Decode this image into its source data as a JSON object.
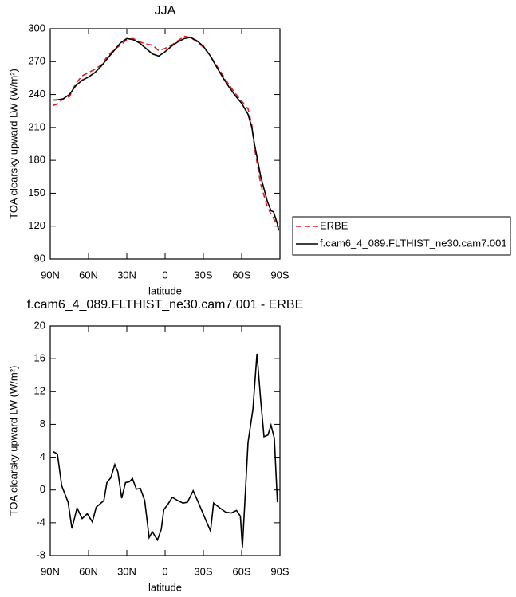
{
  "chart_data": [
    {
      "type": "line",
      "title": "JJA",
      "xlabel": "latitude",
      "ylabel": "TOA clearsky upward LW (W/m²)",
      "x": [
        88,
        85,
        80,
        75,
        70,
        65,
        60,
        55,
        50,
        45,
        40,
        35,
        30,
        25,
        20,
        15,
        10,
        5,
        0,
        -5,
        -10,
        -15,
        -20,
        -25,
        -30,
        -35,
        -40,
        -45,
        -50,
        -55,
        -60,
        -65,
        -68,
        -70,
        -75,
        -80,
        -83,
        -85,
        -88,
        -89
      ],
      "series": [
        {
          "name": "ERBE",
          "color": "#e41a1c",
          "dash": true,
          "values": [
            230,
            231,
            236,
            238,
            250,
            257,
            260,
            263,
            267,
            275,
            281,
            285,
            290,
            291,
            288,
            286,
            285,
            280,
            282,
            285,
            289,
            293,
            292,
            288,
            283,
            276,
            267,
            258,
            249,
            241,
            234,
            227,
            212,
            192,
            158,
            138,
            131,
            127,
            121,
            116
          ]
        },
        {
          "name": "f.cam6_4_089.FLTHIST_ne30.cam7.001",
          "color": "#000000",
          "dash": false,
          "values": [
            235,
            235,
            236,
            240,
            248,
            253,
            256,
            260,
            266,
            273,
            280,
            287,
            291,
            290,
            287,
            282,
            277,
            275,
            279,
            284,
            288,
            291,
            292,
            289,
            284,
            276,
            266,
            256,
            247,
            239,
            232,
            222,
            210,
            195,
            165,
            143,
            134,
            133,
            122,
            116
          ]
        }
      ],
      "xlim": [
        90,
        -90
      ],
      "xticks": [
        {
          "value": 90,
          "label": "90N"
        },
        {
          "value": 60,
          "label": "60N"
        },
        {
          "value": 30,
          "label": "30N"
        },
        0,
        {
          "value": -30,
          "label": "30S"
        },
        {
          "value": -60,
          "label": "60S"
        },
        {
          "value": -90,
          "label": "90S"
        }
      ],
      "ylim": [
        90,
        300
      ],
      "yticks": [
        90,
        120,
        150,
        180,
        210,
        240,
        270,
        300
      ],
      "legend": "outside-right"
    },
    {
      "type": "line",
      "title": "f.cam6_4_089.FLTHIST_ne30.cam7.001 - ERBE",
      "xlabel": "latitude",
      "ylabel": "TOA clearsky upward LW (W/m²)",
      "x": [
        88,
        84.4,
        81,
        76,
        73,
        69,
        65,
        61,
        57,
        54,
        48,
        45.6,
        42.5,
        39.4,
        37,
        34,
        31,
        28,
        25.6,
        22.5,
        19.4,
        16,
        12.5,
        10,
        6,
        3,
        1,
        -2,
        -5.6,
        -10,
        -14,
        -17.5,
        -22,
        -26,
        -30.6,
        -35.6,
        -38,
        -43,
        -47.5,
        -52,
        -56,
        -59,
        -60.6,
        -65,
        -68.8,
        -72,
        -75,
        -77.5,
        -80.6,
        -83,
        -85.6,
        -88
      ],
      "values": [
        4.7,
        4.4,
        0.5,
        -1.5,
        -4.7,
        -2.2,
        -3.5,
        -2.9,
        -3.9,
        -2.1,
        -1.3,
        0.9,
        1.5,
        3.1,
        2.2,
        -1.0,
        0.9,
        1.0,
        1.4,
        0.1,
        0.2,
        -1.3,
        -5.8,
        -5.1,
        -6.1,
        -4.8,
        -2.4,
        -1.8,
        -0.9,
        -1.3,
        -1.6,
        -1.5,
        -0.1,
        -1.5,
        -3.2,
        -5.0,
        -1.6,
        -2.2,
        -2.7,
        -2.8,
        -2.5,
        -3.2,
        -7.0,
        5.8,
        9.8,
        16.6,
        10.8,
        6.5,
        6.7,
        7.9,
        6.3,
        -1.5
      ],
      "color": "#000000",
      "xlim": [
        90,
        -90
      ],
      "xticks": [
        {
          "value": 90,
          "label": "90N"
        },
        {
          "value": 60,
          "label": "60N"
        },
        {
          "value": 30,
          "label": "30N"
        },
        0,
        {
          "value": -30,
          "label": "30S"
        },
        {
          "value": -60,
          "label": "60S"
        },
        {
          "value": -90,
          "label": "90S"
        }
      ],
      "ylim": [
        -8,
        20
      ],
      "yticks": [
        -8,
        -4,
        0,
        4,
        8,
        12,
        16,
        20
      ]
    }
  ]
}
